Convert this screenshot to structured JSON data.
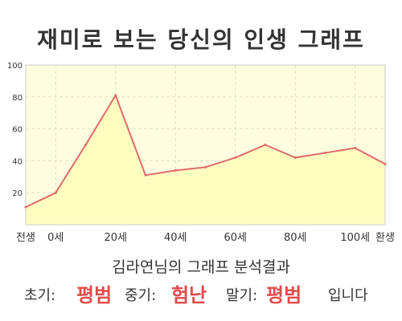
{
  "title": "재미로 보는 당신의 인생 그래프",
  "summary": "김라연님의 그래프 분석결과",
  "result": {
    "early_label": "초기:",
    "early_value": "평범",
    "mid_label": "중기:",
    "mid_value": "험난",
    "late_label": "말기:",
    "late_value": "평범",
    "suffix": "입니다"
  },
  "colors": {
    "line": "#e06b6b",
    "fill": "#fffcc0",
    "plot_bg": "#fffde0",
    "highlight": "#e14b4b"
  },
  "chart_data": {
    "type": "area",
    "x": [
      -10,
      0,
      10,
      20,
      30,
      40,
      50,
      60,
      70,
      80,
      90,
      100,
      110
    ],
    "y": [
      11,
      20,
      50,
      81,
      31,
      34,
      36,
      42,
      50,
      42,
      45,
      48,
      38
    ],
    "x_ticks": [
      {
        "value": -10,
        "label": "전생"
      },
      {
        "value": 0,
        "label": "0세"
      },
      {
        "value": 20,
        "label": "20세"
      },
      {
        "value": 40,
        "label": "40세"
      },
      {
        "value": 60,
        "label": "60세"
      },
      {
        "value": 80,
        "label": "80세"
      },
      {
        "value": 100,
        "label": "100세"
      },
      {
        "value": 110,
        "label": "환생"
      }
    ],
    "y_ticks": [
      20,
      40,
      60,
      80,
      100
    ],
    "xlim": [
      -10,
      110
    ],
    "ylim": [
      0,
      100
    ],
    "grid": true,
    "title": "",
    "xlabel": "",
    "ylabel": ""
  }
}
